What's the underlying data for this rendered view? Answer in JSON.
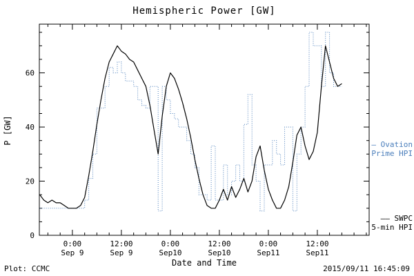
{
  "footer": {
    "left": "Plot: CCMC",
    "right": "2015/09/11 16:45:09"
  },
  "chart_data": {
    "type": "line",
    "title": "Hemispheric Power [GW]",
    "xlabel": "Date and Time",
    "ylabel": "P [GW]",
    "x_unit": "hours since 2015-09-09 00:00 UT",
    "xlim": [
      -8.1,
      72.7
    ],
    "ylim": [
      0,
      78
    ],
    "grid": false,
    "xticks": {
      "values": [
        0,
        12,
        24,
        36,
        48,
        60
      ],
      "labels_top": [
        "0:00",
        "12:00",
        "0:00",
        "12:00",
        "0:00",
        "12:00"
      ],
      "labels_bottom": [
        "Sep 9",
        "Sep 9",
        "Sep10",
        "Sep10",
        "Sep11",
        "Sep11"
      ],
      "minor_step": 3
    },
    "yticks": {
      "values": [
        0,
        20,
        40,
        60
      ],
      "minor_step": 5
    },
    "x": [
      -8,
      -7,
      -6,
      -5,
      -4,
      -3,
      -2,
      -1,
      0,
      1,
      2,
      3,
      4,
      5,
      6,
      7,
      8,
      9,
      10,
      11,
      12,
      13,
      14,
      15,
      16,
      17,
      18,
      19,
      20,
      21,
      22,
      23,
      24,
      25,
      26,
      27,
      28,
      29,
      30,
      31,
      32,
      33,
      34,
      35,
      36,
      37,
      38,
      39,
      40,
      41,
      42,
      43,
      44,
      45,
      46,
      47,
      48,
      49,
      50,
      51,
      52,
      53,
      54,
      55,
      56,
      57,
      58,
      59,
      60,
      61,
      62,
      63,
      64,
      65,
      66
    ],
    "series": [
      {
        "name": "Ovation Prime HPI",
        "color": "#4a7ebb",
        "style": "dotted-step",
        "values": [
          10,
          10,
          10,
          10,
          10,
          10,
          10,
          10,
          10,
          10,
          10,
          13,
          21,
          30,
          47,
          47,
          55,
          62,
          60,
          64,
          60,
          57,
          57,
          55,
          50,
          48,
          47,
          55,
          55,
          9,
          55,
          50,
          45,
          43,
          40,
          40,
          35,
          30,
          25,
          15,
          15,
          13,
          33,
          13,
          13,
          26,
          15,
          20,
          26,
          20,
          41,
          52,
          26,
          20,
          9,
          26,
          26,
          35,
          30,
          26,
          40,
          40,
          9,
          30,
          40,
          55,
          75,
          70,
          70,
          55,
          75,
          60,
          55,
          55,
          55
        ]
      },
      {
        "name": "SWPC 5-min HPI",
        "color": "#000000",
        "style": "solid",
        "values": [
          15,
          13,
          12,
          13,
          12,
          12,
          11,
          10,
          10,
          10,
          11,
          14,
          22,
          31,
          41,
          50,
          58,
          64,
          67,
          70,
          68,
          67,
          65,
          64,
          61,
          58,
          55,
          48,
          39,
          30,
          44,
          55,
          60,
          58,
          54,
          49,
          43,
          36,
          28,
          21,
          15,
          11,
          10,
          10,
          13,
          17,
          13,
          18,
          14,
          17,
          21,
          16,
          20,
          29,
          33,
          24,
          17,
          13,
          10,
          10,
          13,
          18,
          27,
          37,
          40,
          33,
          28,
          31,
          38,
          55,
          70,
          64,
          58,
          55,
          56
        ]
      }
    ],
    "legend": [
      {
        "dash": "–",
        "line1": "Ovation",
        "line2": "Prime HPI",
        "color": "#4a7ebb"
      },
      {
        "dash": "——",
        "line1": "SWPC",
        "line2": "5-min HPI",
        "color": "#000000"
      }
    ]
  }
}
